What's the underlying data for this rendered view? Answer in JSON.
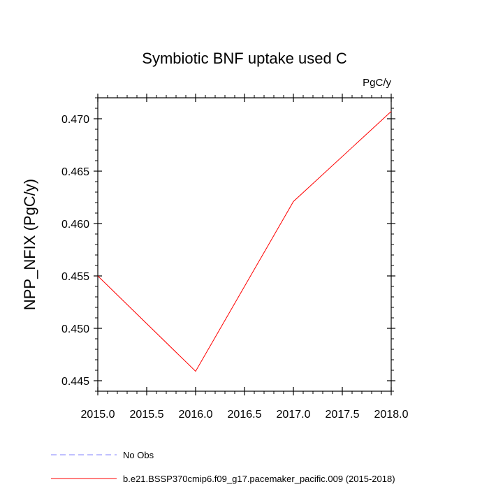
{
  "chart_data": {
    "type": "line",
    "title": "Symbiotic BNF uptake used C",
    "units": "PgC/y",
    "xlabel": "",
    "ylabel": "NPP_NFIX  (PgC/y)",
    "xlim": [
      2015.0,
      2018.0
    ],
    "ylim": [
      0.444,
      0.472
    ],
    "xticks": [
      2015.0,
      2015.5,
      2016.0,
      2016.5,
      2017.0,
      2017.5,
      2018.0
    ],
    "xtick_labels": [
      "2015.0",
      "2015.5",
      "2016.0",
      "2016.5",
      "2017.0",
      "2017.5",
      "2018.0"
    ],
    "yticks": [
      0.445,
      0.45,
      0.455,
      0.46,
      0.465,
      0.47
    ],
    "ytick_labels": [
      "0.445",
      "0.450",
      "0.455",
      "0.460",
      "0.465",
      "0.470"
    ],
    "series": [
      {
        "name": "b.e21.BSSP370cmip6.f09_g17.pacemaker_pacific.009 (2015-2018)",
        "color": "#ff0000",
        "style": "solid",
        "x": [
          2015,
          2016,
          2017,
          2018
        ],
        "values": [
          0.455,
          0.4459,
          0.4621,
          0.4707
        ]
      }
    ],
    "legend": [
      {
        "label": "No Obs",
        "color": "#8080ff",
        "style": "dashed"
      },
      {
        "label": "b.e21.BSSP370cmip6.f09_g17.pacemaker_pacific.009 (2015-2018)",
        "color": "#ff0000",
        "style": "solid"
      }
    ]
  }
}
